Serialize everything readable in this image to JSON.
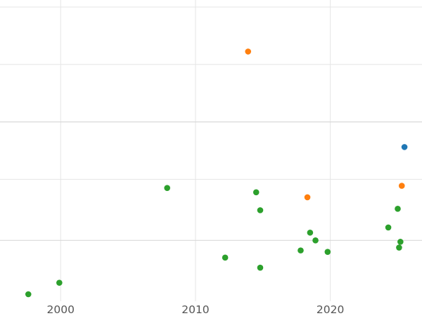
{
  "chart_data": {
    "type": "scatter",
    "title": "",
    "xlabel": "",
    "ylabel": "",
    "xlim": [
      1995.5,
      2026.8
    ],
    "ylim": [
      0,
      1
    ],
    "grid": true,
    "x_ticks": [
      2000,
      2010,
      2020
    ],
    "x_tick_labels": [
      "2000",
      "2010",
      "2020"
    ],
    "y_gridlines": [
      0.1875,
      0.4,
      0.6,
      0.8,
      1.0
    ],
    "colors": {
      "blue": "#1f77b4",
      "orange": "#ff7f0e",
      "green": "#2ca02c"
    },
    "series": [
      {
        "color": "#1f77b4",
        "points": [
          {
            "x": 2025.5,
            "y": 0.5125
          }
        ]
      },
      {
        "color": "#ff7f0e",
        "points": [
          {
            "x": 2013.9,
            "y": 0.845
          },
          {
            "x": 2018.3,
            "y": 0.3375
          },
          {
            "x": 2025.3,
            "y": 0.3775
          }
        ]
      },
      {
        "color": "#2ca02c",
        "points": [
          {
            "x": 1997.6,
            "y": 0.0
          },
          {
            "x": 1999.9,
            "y": 0.04
          },
          {
            "x": 2007.9,
            "y": 0.37
          },
          {
            "x": 2012.2,
            "y": 0.1275
          },
          {
            "x": 2014.5,
            "y": 0.355
          },
          {
            "x": 2014.8,
            "y": 0.2925
          },
          {
            "x": 2014.8,
            "y": 0.0925
          },
          {
            "x": 2017.8,
            "y": 0.1525
          },
          {
            "x": 2018.5,
            "y": 0.2145
          },
          {
            "x": 2018.9,
            "y": 0.1875
          },
          {
            "x": 2019.8,
            "y": 0.1475
          },
          {
            "x": 2024.3,
            "y": 0.2325
          },
          {
            "x": 2025.0,
            "y": 0.2975
          },
          {
            "x": 2025.2,
            "y": 0.1825
          },
          {
            "x": 2025.1,
            "y": 0.1625
          }
        ]
      }
    ]
  }
}
